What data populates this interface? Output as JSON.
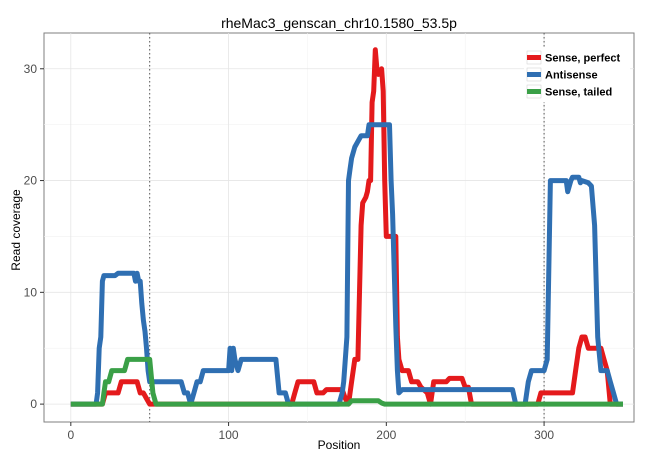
{
  "chart_data": {
    "type": "line",
    "title": "rheMac3_genscan_chr10.1580_53.5p",
    "xlabel": "Position",
    "ylabel": "Read coverage",
    "xlim": [
      -17,
      357
    ],
    "ylim": [
      -1.6,
      33.2
    ],
    "xticks": [
      0,
      100,
      200,
      300
    ],
    "yticks": [
      0,
      10,
      20,
      30
    ],
    "grid": true,
    "vlines": [
      50,
      300
    ],
    "legend_position": "top-right",
    "series": [
      {
        "name": "Sense, perfect",
        "color": "#e41a1c",
        "points": [
          [
            0,
            0
          ],
          [
            20,
            0
          ],
          [
            22,
            1
          ],
          [
            30,
            1
          ],
          [
            32,
            2
          ],
          [
            42,
            2
          ],
          [
            44,
            1
          ],
          [
            46,
            1
          ],
          [
            48,
            0.5
          ],
          [
            50,
            0
          ],
          [
            140,
            0
          ],
          [
            142,
            1
          ],
          [
            144,
            2
          ],
          [
            154,
            2
          ],
          [
            156,
            1
          ],
          [
            160,
            1
          ],
          [
            162,
            1.3
          ],
          [
            172,
            1.3
          ],
          [
            174,
            0.5
          ],
          [
            176,
            0
          ],
          [
            178,
            2
          ],
          [
            180,
            4
          ],
          [
            182,
            4
          ],
          [
            183,
            10
          ],
          [
            184,
            16
          ],
          [
            185,
            18
          ],
          [
            187,
            18.5
          ],
          [
            188,
            19
          ],
          [
            189,
            20
          ],
          [
            190,
            20
          ],
          [
            191,
            27
          ],
          [
            192,
            28
          ],
          [
            193,
            31.7
          ],
          [
            194,
            30
          ],
          [
            195,
            29.5
          ],
          [
            197,
            30
          ],
          [
            198,
            28
          ],
          [
            199,
            20
          ],
          [
            200,
            15
          ],
          [
            206,
            15
          ],
          [
            207,
            6
          ],
          [
            208,
            4
          ],
          [
            210,
            3
          ],
          [
            214,
            3
          ],
          [
            216,
            2
          ],
          [
            220,
            2
          ],
          [
            222,
            1.5
          ],
          [
            226,
            1
          ],
          [
            228,
            0
          ],
          [
            230,
            2
          ],
          [
            238,
            2
          ],
          [
            240,
            2.3
          ],
          [
            248,
            2.3
          ],
          [
            250,
            1.5
          ],
          [
            252,
            1.5
          ],
          [
            254,
            0
          ],
          [
            296,
            0
          ],
          [
            298,
            1
          ],
          [
            318,
            1
          ],
          [
            320,
            3
          ],
          [
            322,
            5
          ],
          [
            324,
            6
          ],
          [
            326,
            6
          ],
          [
            328,
            5
          ],
          [
            336,
            5
          ],
          [
            338,
            4
          ],
          [
            340,
            3
          ],
          [
            342,
            0
          ],
          [
            350,
            0
          ]
        ]
      },
      {
        "name": "Antisense",
        "color": "#2f6fb2",
        "points": [
          [
            0,
            0
          ],
          [
            16,
            0
          ],
          [
            17,
            1
          ],
          [
            18,
            5
          ],
          [
            19,
            6
          ],
          [
            20,
            11
          ],
          [
            21,
            11.5
          ],
          [
            28,
            11.5
          ],
          [
            30,
            11.7
          ],
          [
            40,
            11.7
          ],
          [
            41,
            11
          ],
          [
            42,
            11.7
          ],
          [
            43,
            11
          ],
          [
            44,
            11
          ],
          [
            45,
            9
          ],
          [
            46,
            7.5
          ],
          [
            47,
            6.5
          ],
          [
            48,
            5
          ],
          [
            49,
            3
          ],
          [
            50,
            2
          ],
          [
            70,
            2
          ],
          [
            72,
            1
          ],
          [
            74,
            1
          ],
          [
            76,
            0
          ],
          [
            78,
            1
          ],
          [
            80,
            2
          ],
          [
            82,
            2
          ],
          [
            84,
            3
          ],
          [
            100,
            3
          ],
          [
            101,
            5
          ],
          [
            102,
            3
          ],
          [
            103,
            5
          ],
          [
            104,
            4
          ],
          [
            106,
            3
          ],
          [
            108,
            4
          ],
          [
            130,
            4
          ],
          [
            132,
            1
          ],
          [
            136,
            1
          ],
          [
            138,
            0
          ],
          [
            170,
            0
          ],
          [
            172,
            1
          ],
          [
            173,
            2
          ],
          [
            174,
            4
          ],
          [
            175,
            6
          ],
          [
            176,
            20
          ],
          [
            177,
            21
          ],
          [
            178,
            22
          ],
          [
            180,
            23
          ],
          [
            182,
            23.5
          ],
          [
            184,
            24
          ],
          [
            188,
            24
          ],
          [
            189,
            25
          ],
          [
            202,
            25
          ],
          [
            203,
            20
          ],
          [
            204,
            17
          ],
          [
            205,
            12
          ],
          [
            206,
            7
          ],
          [
            207,
            3
          ],
          [
            208,
            1
          ],
          [
            210,
            1.3
          ],
          [
            280,
            1.3
          ],
          [
            282,
            0
          ],
          [
            288,
            0
          ],
          [
            290,
            2
          ],
          [
            292,
            3
          ],
          [
            300,
            3
          ],
          [
            302,
            4
          ],
          [
            304,
            20
          ],
          [
            314,
            20
          ],
          [
            315,
            19
          ],
          [
            316,
            19.5
          ],
          [
            317,
            20
          ],
          [
            318,
            20.3
          ],
          [
            322,
            20.3
          ],
          [
            323,
            19.8
          ],
          [
            324,
            20
          ],
          [
            328,
            19.8
          ],
          [
            330,
            19.5
          ],
          [
            332,
            16
          ],
          [
            334,
            6
          ],
          [
            336,
            3
          ],
          [
            340,
            3
          ],
          [
            342,
            2
          ],
          [
            344,
            1
          ],
          [
            346,
            0
          ],
          [
            350,
            0
          ]
        ]
      },
      {
        "name": "Sense, tailed",
        "color": "#3aa047",
        "points": [
          [
            0,
            0
          ],
          [
            20,
            0
          ],
          [
            21,
            1
          ],
          [
            22,
            2
          ],
          [
            24,
            2
          ],
          [
            26,
            3
          ],
          [
            34,
            3
          ],
          [
            36,
            4
          ],
          [
            50,
            4
          ],
          [
            52,
            1
          ],
          [
            54,
            0
          ],
          [
            176,
            0
          ],
          [
            178,
            0.3
          ],
          [
            195,
            0.3
          ],
          [
            197,
            0.1
          ],
          [
            199,
            0
          ],
          [
            350,
            0
          ]
        ]
      }
    ]
  }
}
